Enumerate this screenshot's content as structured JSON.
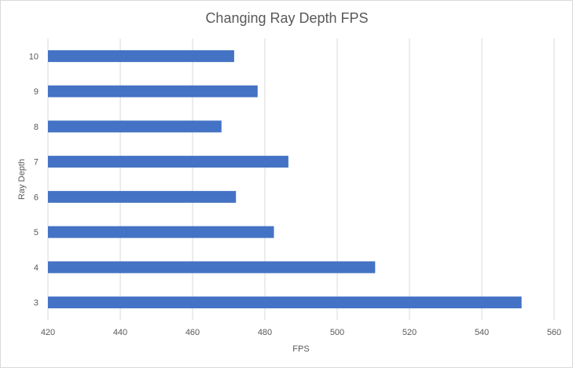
{
  "chart_data": {
    "type": "bar",
    "orientation": "horizontal",
    "title": "Changing Ray Depth FPS",
    "xlabel": "FPS",
    "ylabel": "Ray Depth",
    "categories": [
      "3",
      "4",
      "5",
      "6",
      "7",
      "8",
      "9",
      "10"
    ],
    "values": [
      551,
      510.5,
      482.5,
      472,
      486.5,
      468,
      478,
      471.5
    ],
    "xlim": [
      420,
      560
    ],
    "xticks": [
      "420",
      "440",
      "460",
      "480",
      "500",
      "520",
      "540",
      "560"
    ],
    "grid": "vertical",
    "legend": "none",
    "bar_color": "#4472c4"
  }
}
